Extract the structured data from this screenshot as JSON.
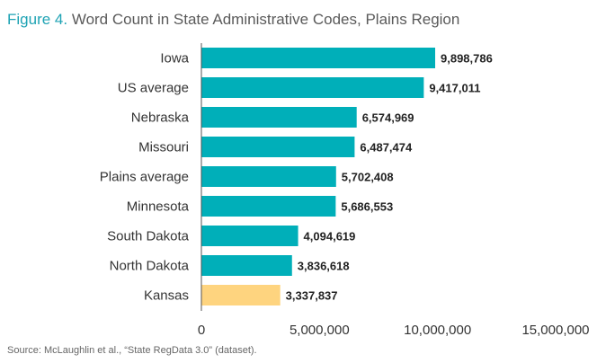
{
  "title": {
    "figure_label": "Figure 4.",
    "text": "Word Count in State Administrative Codes, Plains Region"
  },
  "source": "Source: McLaughlin et al., “State RegData 3.0” (dataset).",
  "chart_data": {
    "type": "bar",
    "orientation": "horizontal",
    "categories": [
      "Iowa",
      "US average",
      "Nebraska",
      "Missouri",
      "Plains average",
      "Minnesota",
      "South Dakota",
      "North Dakota",
      "Kansas"
    ],
    "values": [
      9898786,
      9417011,
      6574969,
      6487474,
      5702408,
      5686553,
      4094619,
      3836618,
      3337837
    ],
    "value_labels": [
      "9,898,786",
      "9,417,011",
      "6,574,969",
      "6,487,474",
      "5,702,408",
      "5,686,553",
      "4,094,619",
      "3,836,618",
      "3,337,837"
    ],
    "highlight_category": "Kansas",
    "xlim": [
      0,
      15000000
    ],
    "xticks": [
      0,
      5000000,
      10000000,
      15000000
    ],
    "xtick_labels": [
      "0",
      "5,000,000",
      "10,000,000",
      "15,000,000"
    ],
    "xlabel": "",
    "ylabel": "",
    "grid": false,
    "colors": {
      "bar": "#00afb9",
      "highlight": "#fed47f",
      "axis": "#555555"
    }
  }
}
